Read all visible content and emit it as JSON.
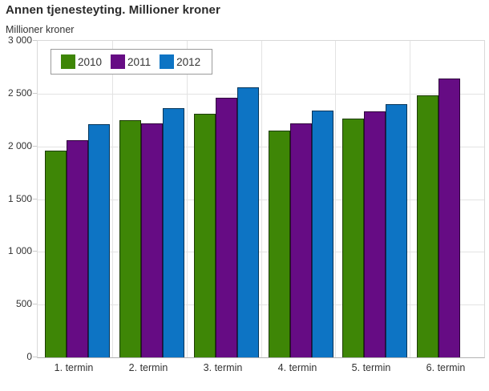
{
  "page": {
    "title": "Annen tjenesteyting. Millioner kroner"
  },
  "chart_data": {
    "type": "bar",
    "title": "Annen tjenesteyting. Millioner kroner",
    "y_axis_title": "Millioner kroner",
    "xlabel": "",
    "ylabel": "Millioner kroner",
    "categories": [
      "1. termin",
      "2. termin",
      "3. termin",
      "4. termin",
      "5. termin",
      "6. termin"
    ],
    "series": [
      {
        "name": "2010",
        "color": "#3e8606",
        "values": [
          1960,
          2250,
          2310,
          2150,
          2260,
          2480
        ]
      },
      {
        "name": "2011",
        "color": "#660c84",
        "values": [
          2060,
          2220,
          2460,
          2220,
          2330,
          2640
        ]
      },
      {
        "name": "2012",
        "color": "#0d74c4",
        "values": [
          2210,
          2360,
          2560,
          2340,
          2400,
          null
        ]
      }
    ],
    "ylim": [
      0,
      3000
    ],
    "ytick_step": 500,
    "ytick_labels": [
      "0",
      "500",
      "1 000",
      "1 500",
      "2 000",
      "2 500",
      "3 000"
    ],
    "grid": true,
    "legend_position": "top-left-inside",
    "plot_border_color": "#d9d9d9",
    "gridline_color": "#e3e3e3"
  }
}
